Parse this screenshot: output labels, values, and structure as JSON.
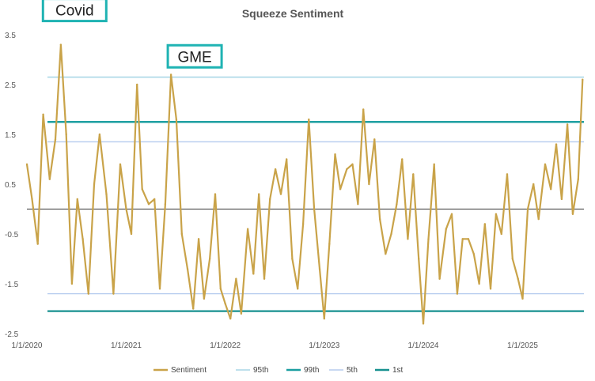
{
  "chart_data": {
    "type": "line",
    "title": "Squeeze Sentiment",
    "xlabel": "",
    "ylabel": "",
    "ylim": [
      -2.5,
      3.5
    ],
    "yticks": [
      3.5,
      2.5,
      1.5,
      0.5,
      -0.5,
      -1.5,
      -2.5
    ],
    "xlim": [
      "2020-01-01",
      "2025-08-15"
    ],
    "xticks": [
      {
        "date": "2020-01-01",
        "label": "1/1/2020"
      },
      {
        "date": "2021-01-01",
        "label": "1/1/2021"
      },
      {
        "date": "2022-01-01",
        "label": "1/1/2022"
      },
      {
        "date": "2023-01-01",
        "label": "1/1/2023"
      },
      {
        "date": "2024-01-01",
        "label": "1/1/2024"
      },
      {
        "date": "2025-01-01",
        "label": "1/1/2025"
      }
    ],
    "grid": false,
    "legend_position": "bottom",
    "series": [
      {
        "name": "Sentiment",
        "color": "#c9a349",
        "x": [
          "2020-01-01",
          "2020-01-20",
          "2020-02-10",
          "2020-03-01",
          "2020-03-25",
          "2020-04-15",
          "2020-05-05",
          "2020-05-25",
          "2020-06-15",
          "2020-07-05",
          "2020-07-25",
          "2020-08-15",
          "2020-09-05",
          "2020-09-25",
          "2020-10-20",
          "2020-11-15",
          "2020-12-10",
          "2021-01-01",
          "2021-01-20",
          "2021-02-10",
          "2021-03-01",
          "2021-03-25",
          "2021-04-15",
          "2021-05-05",
          "2021-05-25",
          "2021-06-15",
          "2021-07-05",
          "2021-07-25",
          "2021-08-15",
          "2021-09-05",
          "2021-09-25",
          "2021-10-15",
          "2021-11-05",
          "2021-11-25",
          "2021-12-15",
          "2022-01-01",
          "2022-01-20",
          "2022-02-10",
          "2022-03-01",
          "2022-03-25",
          "2022-04-15",
          "2022-05-05",
          "2022-05-25",
          "2022-06-15",
          "2022-07-05",
          "2022-07-25",
          "2022-08-15",
          "2022-09-05",
          "2022-09-25",
          "2022-10-15",
          "2022-11-05",
          "2022-11-25",
          "2022-12-15",
          "2023-01-01",
          "2023-01-20",
          "2023-02-10",
          "2023-03-01",
          "2023-03-25",
          "2023-04-15",
          "2023-05-05",
          "2023-05-25",
          "2023-06-15",
          "2023-07-05",
          "2023-07-25",
          "2023-08-15",
          "2023-09-05",
          "2023-09-25",
          "2023-10-15",
          "2023-11-05",
          "2023-11-25",
          "2023-12-15",
          "2024-01-01",
          "2024-01-20",
          "2024-02-10",
          "2024-03-01",
          "2024-03-25",
          "2024-04-15",
          "2024-05-05",
          "2024-05-25",
          "2024-06-15",
          "2024-07-05",
          "2024-07-25",
          "2024-08-15",
          "2024-09-05",
          "2024-09-25",
          "2024-10-15",
          "2024-11-05",
          "2024-11-25",
          "2024-12-15",
          "2025-01-01",
          "2025-01-20",
          "2025-02-10",
          "2025-03-01",
          "2025-03-25",
          "2025-04-15",
          "2025-05-05",
          "2025-05-25",
          "2025-06-15",
          "2025-07-05",
          "2025-07-25",
          "2025-08-10"
        ],
        "values": [
          0.9,
          0.2,
          -0.7,
          1.9,
          0.6,
          1.4,
          3.3,
          1.5,
          -1.5,
          0.2,
          -0.6,
          -1.7,
          0.5,
          1.5,
          0.3,
          -1.7,
          0.9,
          0.0,
          -0.5,
          2.5,
          0.4,
          0.1,
          0.2,
          -1.6,
          0.1,
          2.7,
          1.8,
          -0.5,
          -1.2,
          -2.0,
          -0.6,
          -1.8,
          -1.0,
          0.3,
          -1.6,
          -1.9,
          -2.2,
          -1.4,
          -2.1,
          -0.4,
          -1.3,
          0.3,
          -1.4,
          0.2,
          0.8,
          0.3,
          1.0,
          -1.0,
          -1.6,
          -0.3,
          1.8,
          0.0,
          -1.2,
          -2.2,
          -0.7,
          1.1,
          0.4,
          0.8,
          0.9,
          0.1,
          2.0,
          0.5,
          1.4,
          -0.2,
          -0.9,
          -0.5,
          0.1,
          1.0,
          -0.6,
          0.7,
          -1.0,
          -2.3,
          -0.6,
          0.9,
          -1.4,
          -0.4,
          -0.1,
          -1.7,
          -0.6,
          -0.6,
          -0.9,
          -1.5,
          -0.3,
          -1.6,
          -0.1,
          -0.5,
          0.7,
          -1.0,
          -1.4,
          -1.8,
          0.0,
          0.5,
          -0.2,
          0.9,
          0.4,
          1.3,
          0.2,
          1.7,
          -0.1,
          0.6,
          2.6
        ]
      },
      {
        "name": "95th",
        "color": "#a9d6e5",
        "values": [
          2.65,
          2.65
        ]
      },
      {
        "name": "99th",
        "color": "#1a9ea0",
        "values": [
          1.75,
          1.75
        ]
      },
      {
        "name": "5th",
        "color": "#b5cbee",
        "values": [
          1.35,
          -1.7
        ]
      },
      {
        "name": "1st",
        "color": "#17918f",
        "values": [
          -2.05
        ]
      }
    ],
    "annotations": [
      {
        "text": "Covid",
        "date": "2020-04-10",
        "value": 3.3
      },
      {
        "text": "GME",
        "date": "2021-06-15",
        "value": 2.75
      }
    ]
  }
}
